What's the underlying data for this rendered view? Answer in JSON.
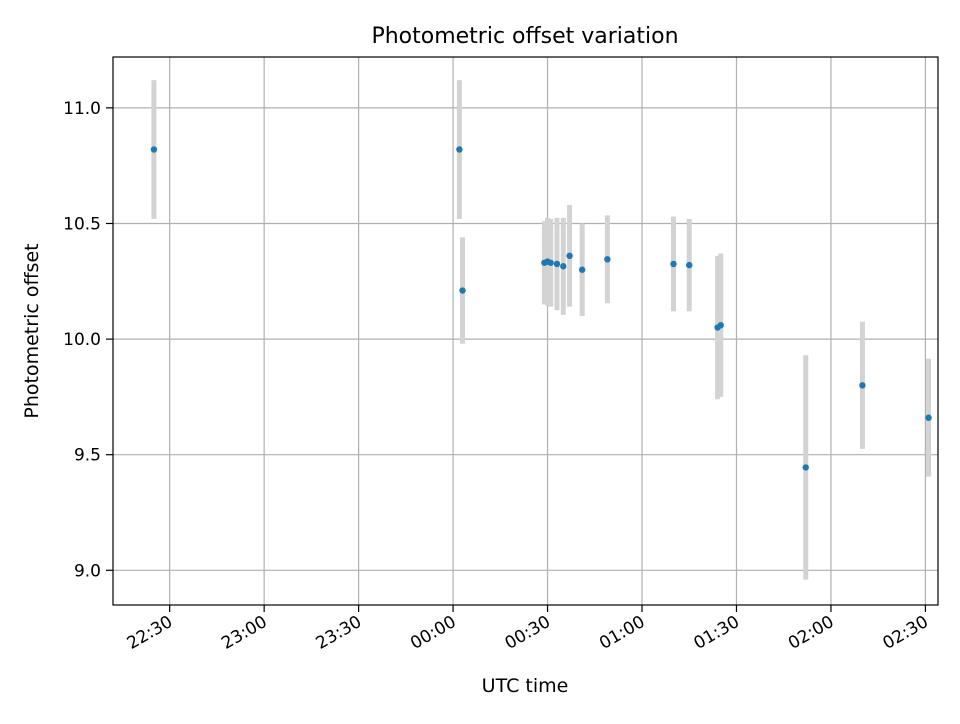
{
  "chart_data": {
    "type": "scatter",
    "title": "Photometric offset variation",
    "xlabel": "UTC time",
    "ylabel": "Photometric offset",
    "x_type": "time",
    "xlim": [
      "22:12",
      "02:34"
    ],
    "ylim": [
      8.85,
      11.22
    ],
    "x_ticks": [
      "22:30",
      "23:00",
      "23:30",
      "00:00",
      "00:30",
      "01:00",
      "01:30",
      "02:00",
      "02:30"
    ],
    "y_ticks": [
      "9.0",
      "9.5",
      "10.0",
      "10.5",
      "11.0"
    ],
    "y_tick_values": [
      9.0,
      9.5,
      10.0,
      10.5,
      11.0
    ],
    "grid": true,
    "colors": {
      "point": "#1f77b4",
      "errorbar": "#d3d3d3",
      "grid": "#b0b0b0"
    },
    "series": [
      {
        "x": [
          "22:25",
          "00:02",
          "00:03",
          "00:29",
          "00:30",
          "00:31",
          "00:33",
          "00:35",
          "00:37",
          "00:41",
          "00:49",
          "01:10",
          "01:15",
          "01:24",
          "01:25",
          "01:52",
          "02:10",
          "02:31"
        ],
        "y": [
          10.82,
          10.82,
          10.21,
          10.33,
          10.335,
          10.33,
          10.325,
          10.315,
          10.36,
          10.3,
          10.345,
          10.325,
          10.32,
          10.05,
          10.06,
          9.445,
          9.8,
          9.66
        ],
        "yerr": [
          0.3,
          0.3,
          0.23,
          0.18,
          0.19,
          0.19,
          0.2,
          0.21,
          0.22,
          0.2,
          0.19,
          0.205,
          0.2,
          0.31,
          0.31,
          0.485,
          0.275,
          0.255
        ]
      }
    ]
  }
}
